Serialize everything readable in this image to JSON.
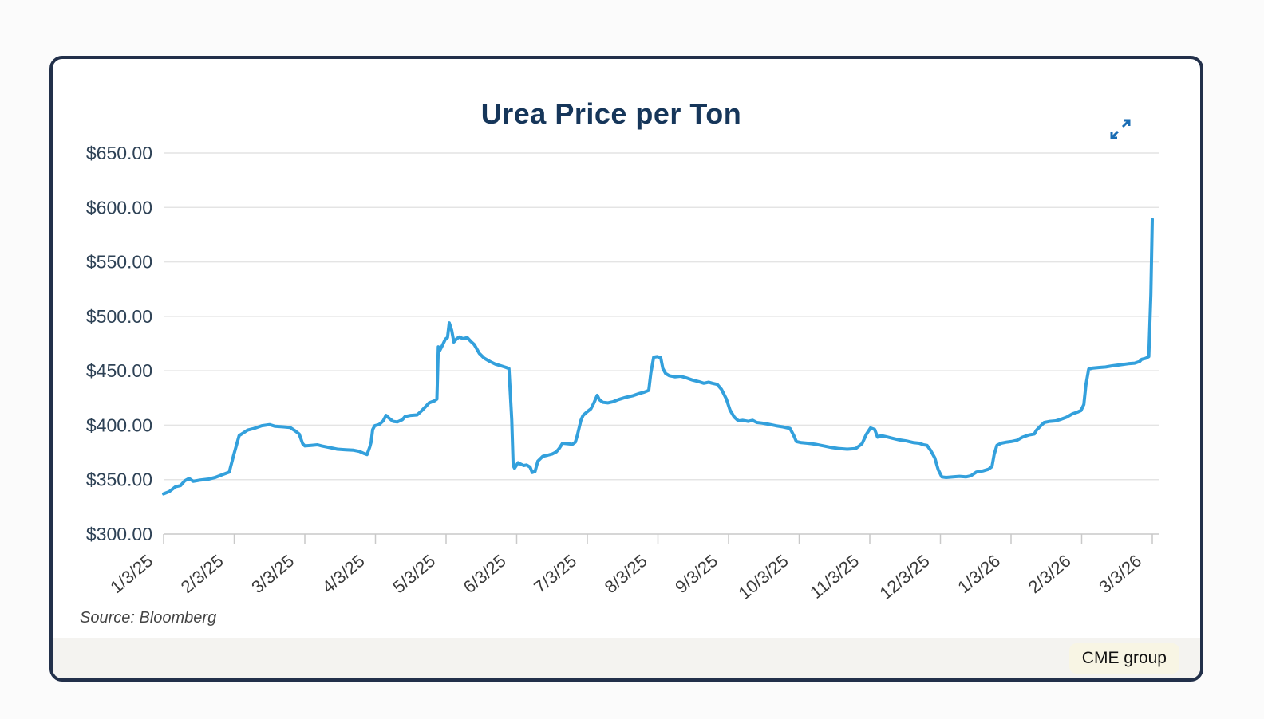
{
  "header": {
    "expand_icon_color": "#1a6db4"
  },
  "footer": {
    "source": "Source: Bloomberg",
    "badge_label": "CME group",
    "badge_background": "#f8f5e4"
  },
  "chart_data": {
    "type": "line",
    "title": "Urea Price per Ton",
    "xlabel": "",
    "ylabel": "",
    "x_tick_labels": [
      "1/3/25",
      "2/3/25",
      "3/3/25",
      "4/3/25",
      "5/3/25",
      "6/3/25",
      "7/3/25",
      "8/3/25",
      "9/3/25",
      "10/3/25",
      "11/3/25",
      "12/3/25",
      "1/3/26",
      "2/3/26",
      "3/3/26"
    ],
    "y_ticks": [
      300,
      350,
      400,
      450,
      500,
      550,
      600,
      650
    ],
    "y_tick_labels": [
      "$300.00",
      "$350.00",
      "$400.00",
      "$450.00",
      "$500.00",
      "$550.00",
      "$600.00",
      "$650.00"
    ],
    "ylim": [
      300,
      650
    ],
    "xlim": [
      0,
      14
    ],
    "grid": "horizontal",
    "legend": "none",
    "grid_color": "#e4e4e4",
    "axis_line_color": "#c9c9c9",
    "y_label_color": "#2e4256",
    "x_label_color": "#3a3a3a",
    "series": [
      {
        "name": "Urea price ($ per ton)",
        "color": "#33a0dc",
        "points": [
          [
            0.0,
            337
          ],
          [
            0.08,
            339
          ],
          [
            0.17,
            343.5
          ],
          [
            0.24,
            344.5
          ],
          [
            0.3,
            349
          ],
          [
            0.36,
            351
          ],
          [
            0.42,
            348.5
          ],
          [
            0.51,
            349.5
          ],
          [
            0.64,
            350.5
          ],
          [
            0.73,
            352
          ],
          [
            0.85,
            355
          ],
          [
            0.93,
            357
          ],
          [
            0.99,
            372
          ],
          [
            1.07,
            390.5
          ],
          [
            1.13,
            393
          ],
          [
            1.19,
            395.5
          ],
          [
            1.28,
            397
          ],
          [
            1.39,
            399.5
          ],
          [
            1.5,
            400.5
          ],
          [
            1.58,
            399
          ],
          [
            1.7,
            398.5
          ],
          [
            1.79,
            398
          ],
          [
            1.86,
            395
          ],
          [
            1.92,
            392
          ],
          [
            1.97,
            383
          ],
          [
            2.0,
            381
          ],
          [
            2.09,
            381.5
          ],
          [
            2.18,
            382
          ],
          [
            2.24,
            381
          ],
          [
            2.35,
            379.5
          ],
          [
            2.46,
            378
          ],
          [
            2.58,
            377.5
          ],
          [
            2.69,
            377
          ],
          [
            2.77,
            376
          ],
          [
            2.84,
            374
          ],
          [
            2.88,
            373
          ],
          [
            2.92,
            380
          ],
          [
            2.94,
            385
          ],
          [
            2.96,
            396
          ],
          [
            2.99,
            399.5
          ],
          [
            3.05,
            400.5
          ],
          [
            3.11,
            404
          ],
          [
            3.15,
            409
          ],
          [
            3.2,
            406
          ],
          [
            3.25,
            403.5
          ],
          [
            3.31,
            403
          ],
          [
            3.38,
            405
          ],
          [
            3.42,
            408
          ],
          [
            3.5,
            409
          ],
          [
            3.59,
            409.5
          ],
          [
            3.65,
            413
          ],
          [
            3.71,
            417
          ],
          [
            3.76,
            420.5
          ],
          [
            3.84,
            422.5
          ],
          [
            3.87,
            424
          ],
          [
            3.89,
            472
          ],
          [
            3.91,
            468.5
          ],
          [
            3.93,
            471
          ],
          [
            3.96,
            475
          ],
          [
            3.99,
            479
          ],
          [
            4.02,
            480.5
          ],
          [
            4.045,
            494
          ],
          [
            4.08,
            487
          ],
          [
            4.11,
            476.5
          ],
          [
            4.15,
            479.5
          ],
          [
            4.19,
            481
          ],
          [
            4.24,
            479.5
          ],
          [
            4.3,
            480.5
          ],
          [
            4.35,
            477
          ],
          [
            4.4,
            474
          ],
          [
            4.47,
            466
          ],
          [
            4.54,
            461.5
          ],
          [
            4.62,
            458.5
          ],
          [
            4.7,
            456
          ],
          [
            4.78,
            454.5
          ],
          [
            4.85,
            453
          ],
          [
            4.89,
            452
          ],
          [
            4.93,
            405
          ],
          [
            4.95,
            363
          ],
          [
            4.97,
            360.5
          ],
          [
            5.02,
            365.5
          ],
          [
            5.05,
            364.5
          ],
          [
            5.1,
            363
          ],
          [
            5.14,
            363.5
          ],
          [
            5.19,
            361.5
          ],
          [
            5.22,
            356.5
          ],
          [
            5.26,
            357.5
          ],
          [
            5.3,
            367
          ],
          [
            5.37,
            371.5
          ],
          [
            5.44,
            372.5
          ],
          [
            5.5,
            373.5
          ],
          [
            5.56,
            375.5
          ],
          [
            5.6,
            378.5
          ],
          [
            5.65,
            383.5
          ],
          [
            5.72,
            383
          ],
          [
            5.79,
            382.5
          ],
          [
            5.83,
            384.5
          ],
          [
            5.86,
            391
          ],
          [
            5.91,
            404.5
          ],
          [
            5.94,
            409
          ],
          [
            6.0,
            412.5
          ],
          [
            6.05,
            415
          ],
          [
            6.09,
            420
          ],
          [
            6.14,
            427.5
          ],
          [
            6.17,
            423.5
          ],
          [
            6.22,
            421
          ],
          [
            6.29,
            420.5
          ],
          [
            6.36,
            421.5
          ],
          [
            6.44,
            423.5
          ],
          [
            6.54,
            425.5
          ],
          [
            6.64,
            427
          ],
          [
            6.73,
            429
          ],
          [
            6.81,
            430.5
          ],
          [
            6.87,
            432
          ],
          [
            6.9,
            448
          ],
          [
            6.94,
            462.5
          ],
          [
            6.99,
            463
          ],
          [
            7.04,
            462
          ],
          [
            7.07,
            452
          ],
          [
            7.11,
            447.5
          ],
          [
            7.16,
            445.5
          ],
          [
            7.24,
            444.5
          ],
          [
            7.32,
            445
          ],
          [
            7.4,
            443.5
          ],
          [
            7.49,
            441.5
          ],
          [
            7.58,
            440
          ],
          [
            7.65,
            438.5
          ],
          [
            7.72,
            439.5
          ],
          [
            7.77,
            438.5
          ],
          [
            7.84,
            437.5
          ],
          [
            7.9,
            433
          ],
          [
            7.97,
            424
          ],
          [
            8.02,
            414
          ],
          [
            8.08,
            407.5
          ],
          [
            8.14,
            404
          ],
          [
            8.2,
            404.5
          ],
          [
            8.28,
            403.5
          ],
          [
            8.34,
            404.5
          ],
          [
            8.4,
            402.5
          ],
          [
            8.47,
            402
          ],
          [
            8.56,
            401
          ],
          [
            8.67,
            399.5
          ],
          [
            8.77,
            398.5
          ],
          [
            8.87,
            397
          ],
          [
            8.92,
            391
          ],
          [
            8.96,
            385
          ],
          [
            9.03,
            384
          ],
          [
            9.12,
            383.5
          ],
          [
            9.23,
            382.5
          ],
          [
            9.35,
            381
          ],
          [
            9.46,
            379.5
          ],
          [
            9.57,
            378.5
          ],
          [
            9.68,
            378
          ],
          [
            9.8,
            378.5
          ],
          [
            9.89,
            383
          ],
          [
            9.95,
            391.5
          ],
          [
            10.01,
            397.5
          ],
          [
            10.07,
            396
          ],
          [
            10.11,
            389
          ],
          [
            10.16,
            390.5
          ],
          [
            10.23,
            389.5
          ],
          [
            10.32,
            388
          ],
          [
            10.42,
            386.5
          ],
          [
            10.52,
            385.5
          ],
          [
            10.62,
            384
          ],
          [
            10.7,
            383.5
          ],
          [
            10.76,
            382
          ],
          [
            10.81,
            381.5
          ],
          [
            10.86,
            377
          ],
          [
            10.92,
            370
          ],
          [
            10.97,
            359
          ],
          [
            11.02,
            352.5
          ],
          [
            11.08,
            352
          ],
          [
            11.18,
            352.5
          ],
          [
            11.27,
            353
          ],
          [
            11.36,
            352.5
          ],
          [
            11.43,
            353.5
          ],
          [
            11.51,
            357
          ],
          [
            11.6,
            358
          ],
          [
            11.68,
            359.5
          ],
          [
            11.73,
            362
          ],
          [
            11.76,
            373
          ],
          [
            11.8,
            381.5
          ],
          [
            11.86,
            383.5
          ],
          [
            11.94,
            384.5
          ],
          [
            12.0,
            385
          ],
          [
            12.08,
            386
          ],
          [
            12.16,
            389
          ],
          [
            12.25,
            391
          ],
          [
            12.33,
            392
          ],
          [
            12.36,
            395.5
          ],
          [
            12.42,
            399.5
          ],
          [
            12.47,
            402.5
          ],
          [
            12.55,
            403.5
          ],
          [
            12.63,
            404
          ],
          [
            12.71,
            405.5
          ],
          [
            12.79,
            407.5
          ],
          [
            12.87,
            410.5
          ],
          [
            12.94,
            412
          ],
          [
            12.99,
            413.5
          ],
          [
            13.03,
            419
          ],
          [
            13.06,
            437
          ],
          [
            13.1,
            451.5
          ],
          [
            13.16,
            452.5
          ],
          [
            13.25,
            453
          ],
          [
            13.34,
            453.5
          ],
          [
            13.43,
            454.5
          ],
          [
            13.55,
            455.5
          ],
          [
            13.66,
            456.5
          ],
          [
            13.75,
            457
          ],
          [
            13.82,
            458.5
          ],
          [
            13.85,
            460.5
          ],
          [
            13.91,
            461.5
          ],
          [
            13.95,
            463
          ],
          [
            13.98,
            520
          ],
          [
            14.0,
            589
          ]
        ]
      }
    ]
  }
}
